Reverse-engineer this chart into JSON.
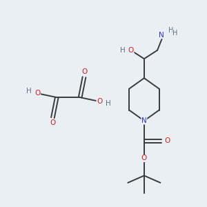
{
  "background_color": "#eaeff3",
  "atom_colors": {
    "C": "#3a3a3a",
    "N": "#3030cc",
    "O": "#cc2020",
    "H": "#607080"
  },
  "line_color": "#3a3a3a",
  "line_width": 1.4,
  "font_size": 7.5,
  "figsize": [
    3.0,
    3.0
  ],
  "dpi": 100
}
